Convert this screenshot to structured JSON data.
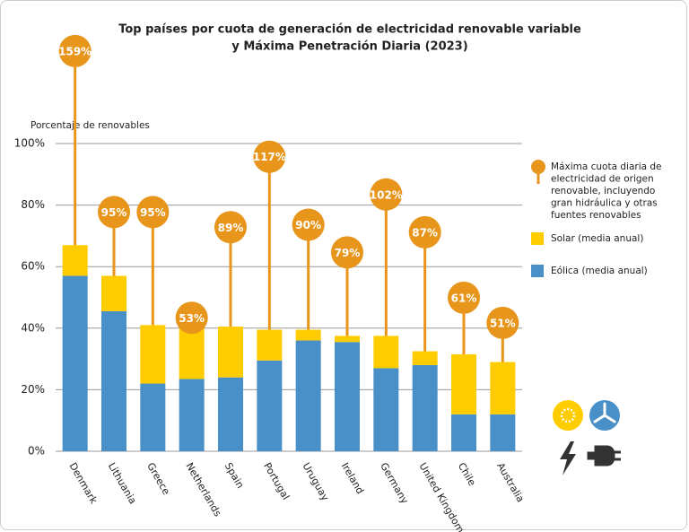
{
  "chart_data": {
    "type": "stacked-bar-lollipop",
    "title": [
      "Top países por cuota de generación de electricidad renovable variable",
      "y Máxima Penetración Diaria (2023)"
    ],
    "y_label": "Porcentaje de renovables",
    "categories": [
      "Denmark",
      "Lithuania",
      "Greece",
      "Netherlands",
      "Spain",
      "Portugal",
      "Uruguay",
      "Ireland",
      "Germany",
      "United Kingdom",
      "Chile",
      "Australia"
    ],
    "series": [
      {
        "name": "Eólica (media anual)",
        "color": "#4a90c8",
        "values": [
          57,
          45.5,
          22,
          23.5,
          24,
          29.5,
          36,
          35.5,
          27,
          28,
          12,
          12
        ]
      },
      {
        "name": "Solar (media anual)",
        "color": "#ffcc00",
        "values": [
          10,
          11.5,
          19,
          17.5,
          16.5,
          10,
          3.5,
          2,
          10.5,
          4.5,
          19.5,
          17
        ]
      },
      {
        "name": "Máxima cuota diaria de electricidad de origen renovable, incluyendo gran hidráulica y otras fuentes renovables",
        "color": "#e8951c",
        "axis": "y2",
        "values": [
          159,
          95,
          95,
          53,
          89,
          117,
          90,
          79,
          102,
          87,
          61,
          51
        ],
        "value_labels": [
          "159%",
          "95%",
          "95%",
          "53%",
          "89%",
          "117%",
          "90%",
          "79%",
          "102%",
          "87%",
          "61%",
          "51%"
        ]
      }
    ],
    "ylim": [
      0,
      100
    ],
    "yticks": [
      {
        "value": 0,
        "label": "0%"
      },
      {
        "value": 20,
        "label": "20%"
      },
      {
        "value": 40,
        "label": "40%"
      },
      {
        "value": 60,
        "label": "60%"
      },
      {
        "value": 80,
        "label": "80%"
      },
      {
        "value": 100,
        "label": "100%"
      }
    ],
    "y2lim": [
      0,
      165
    ],
    "grid": true
  }
}
